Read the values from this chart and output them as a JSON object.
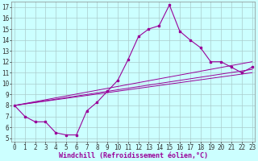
{
  "xlabel": "Windchill (Refroidissement éolien,°C)",
  "x_values": [
    0,
    1,
    2,
    3,
    4,
    5,
    6,
    7,
    8,
    9,
    10,
    11,
    12,
    13,
    14,
    15,
    16,
    17,
    18,
    19,
    20,
    21,
    22,
    23
  ],
  "line1_y": [
    8.0,
    7.0,
    6.5,
    6.5,
    5.5,
    5.3,
    5.3,
    7.5,
    8.3,
    9.3,
    10.3,
    12.2,
    14.3,
    15.0,
    15.3,
    17.2,
    14.8,
    14.0,
    13.3,
    12.0,
    12.0,
    11.5,
    11.0,
    11.5
  ],
  "color": "#990099",
  "bg_color": "#ccffff",
  "grid_color": "#aacccc",
  "yticks": [
    5,
    6,
    7,
    8,
    9,
    10,
    11,
    12,
    13,
    14,
    15,
    16,
    17
  ],
  "xticks": [
    0,
    1,
    2,
    3,
    4,
    5,
    6,
    7,
    8,
    9,
    10,
    11,
    12,
    13,
    14,
    15,
    16,
    17,
    18,
    19,
    20,
    21,
    22,
    23
  ],
  "straight_lines": [
    [
      [
        0,
        8.0
      ],
      [
        23,
        12.0
      ]
    ],
    [
      [
        0,
        8.0
      ],
      [
        23,
        11.3
      ]
    ],
    [
      [
        0,
        8.0
      ],
      [
        23,
        11.0
      ]
    ]
  ],
  "tick_fontsize": 5.5,
  "label_fontsize": 6
}
